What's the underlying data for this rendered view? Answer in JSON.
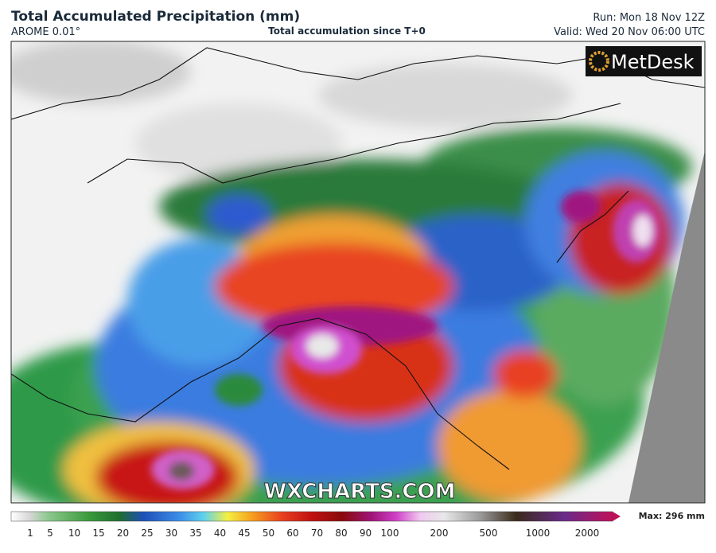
{
  "header": {
    "title": "Total Accumulated Precipitation (mm)",
    "model": "AROME 0.01°",
    "subtitle": "Total accumulation since T+0",
    "run": "Run: Mon 18 Nov 12Z",
    "valid": "Valid: Wed 20 Nov 06:00 UTC"
  },
  "logo": "MetDesk",
  "watermark": "WXCHARTS.COM",
  "legend": {
    "labels": [
      1,
      5,
      10,
      15,
      20,
      25,
      30,
      35,
      40,
      45,
      50,
      60,
      70,
      80,
      90,
      100,
      200,
      500,
      1000,
      2000
    ],
    "max": "Max: 296 mm"
  }
}
